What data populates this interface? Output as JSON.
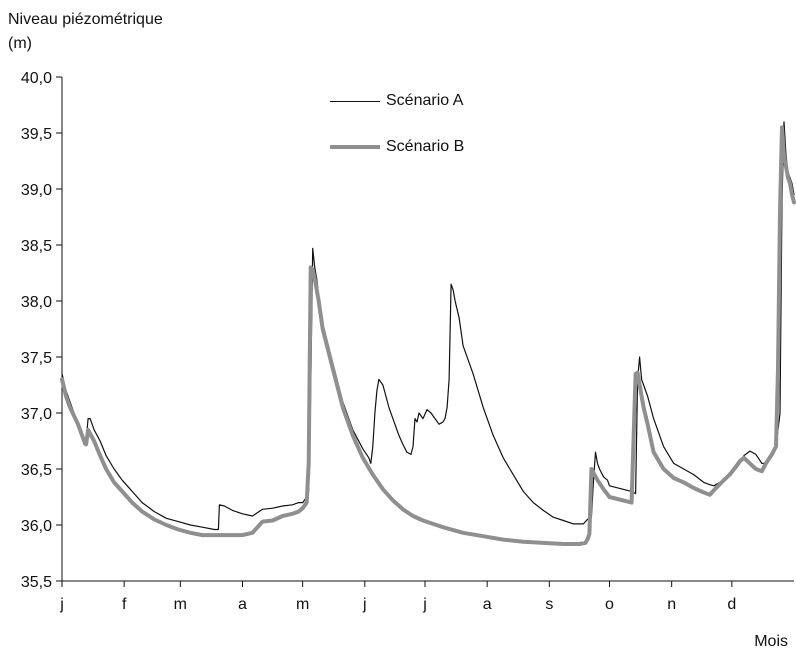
{
  "chart_data": {
    "type": "line",
    "ylabel_line1": "Niveau piézométrique",
    "ylabel_line2": "(m)",
    "xlabel": "Mois",
    "ylim": [
      35.5,
      40.0
    ],
    "y_ticks": [
      "35,5",
      "36,0",
      "36,5",
      "37,0",
      "37,5",
      "38,0",
      "38,5",
      "39,0",
      "39,5",
      "40,0"
    ],
    "x_range": [
      0,
      365
    ],
    "categories": [
      "j",
      "f",
      "m",
      "a",
      "m",
      "j",
      "j",
      "a",
      "s",
      "o",
      "n",
      "d"
    ],
    "category_positions": [
      0,
      31,
      59,
      90,
      120,
      151,
      181,
      212,
      243,
      273,
      304,
      334
    ],
    "legend_placement": "top-center",
    "grid": false,
    "series": [
      {
        "name": "Scénario A",
        "color": "#111111",
        "style": "thin",
        "x": [
          0,
          2,
          4,
          8,
          11,
          12,
          13,
          14,
          16,
          19,
          22,
          26,
          30,
          35,
          40,
          46,
          52,
          58,
          64,
          70,
          76,
          78,
          78.5,
          81,
          85,
          90,
          95,
          100,
          105,
          110,
          115,
          118,
          120,
          122,
          123,
          124,
          125,
          126,
          127,
          128,
          130,
          135,
          140,
          145,
          150,
          153,
          154,
          155,
          156,
          157,
          158,
          160,
          163,
          166,
          168,
          170,
          172,
          174,
          175,
          176,
          177,
          178,
          180,
          182,
          184,
          186,
          188,
          190,
          191,
          192,
          193,
          194,
          195,
          196,
          198,
          200,
          205,
          210,
          215,
          220,
          225,
          230,
          235,
          240,
          245,
          250,
          255,
          260,
          262,
          264,
          265,
          266,
          267,
          268,
          270,
          272,
          273,
          284,
          286,
          287,
          288,
          289,
          290,
          292,
          295,
          300,
          305,
          310,
          315,
          320,
          323,
          325,
          330,
          333,
          336,
          338,
          340,
          343,
          346,
          349,
          351,
          354,
          356,
          358,
          359,
          360,
          361,
          362,
          363,
          364,
          365
        ],
        "y": [
          37.35,
          37.2,
          37.1,
          36.9,
          36.72,
          36.75,
          36.95,
          36.95,
          36.85,
          36.75,
          36.62,
          36.5,
          36.4,
          36.3,
          36.2,
          36.12,
          36.06,
          36.03,
          36.0,
          35.98,
          35.96,
          35.96,
          36.18,
          36.17,
          36.13,
          36.1,
          36.08,
          36.14,
          36.15,
          36.17,
          36.18,
          36.2,
          36.2,
          36.25,
          36.3,
          37.2,
          38.47,
          38.3,
          38.2,
          38.05,
          37.8,
          37.45,
          37.1,
          36.85,
          36.68,
          36.6,
          36.55,
          36.7,
          37.0,
          37.2,
          37.3,
          37.25,
          37.05,
          36.9,
          36.8,
          36.72,
          36.65,
          36.63,
          36.7,
          36.95,
          36.92,
          37.0,
          36.95,
          37.03,
          37.0,
          36.95,
          36.9,
          36.92,
          36.95,
          37.05,
          37.3,
          38.15,
          38.1,
          38.0,
          37.85,
          37.6,
          37.35,
          37.05,
          36.8,
          36.6,
          36.45,
          36.3,
          36.2,
          36.13,
          36.07,
          36.04,
          36.01,
          36.01,
          36.05,
          36.07,
          36.4,
          36.65,
          36.55,
          36.5,
          36.43,
          36.4,
          36.35,
          36.3,
          36.28,
          37.3,
          37.5,
          37.3,
          37.25,
          37.15,
          36.95,
          36.7,
          36.55,
          36.5,
          36.45,
          36.38,
          36.36,
          36.35,
          36.4,
          36.47,
          36.5,
          36.55,
          36.62,
          36.66,
          36.63,
          36.55,
          36.55,
          36.62,
          36.7,
          37.0,
          38.9,
          39.6,
          39.3,
          39.15,
          39.1,
          39.05,
          38.95
        ]
      },
      {
        "name": "Scénario B",
        "color": "#8f8f8f",
        "style": "thick",
        "x": [
          0,
          2,
          4,
          8,
          11,
          12,
          13,
          16,
          19,
          22,
          26,
          30,
          35,
          40,
          46,
          52,
          58,
          64,
          70,
          76,
          80,
          85,
          90,
          95,
          98,
          100,
          105,
          110,
          115,
          118,
          120,
          122,
          123,
          124,
          125,
          126,
          128,
          130,
          135,
          140,
          145,
          150,
          155,
          160,
          165,
          170,
          175,
          180,
          185,
          190,
          200,
          210,
          220,
          230,
          240,
          250,
          258,
          261,
          262,
          263,
          264,
          267,
          270,
          273,
          284,
          286,
          287,
          288,
          289,
          290,
          292,
          295,
          300,
          305,
          310,
          315,
          320,
          323,
          325,
          330,
          333,
          336,
          338,
          340,
          343,
          346,
          349,
          351,
          354,
          356,
          357,
          358,
          359,
          360,
          361,
          362,
          363,
          364,
          365
        ],
        "y": [
          37.3,
          37.15,
          37.05,
          36.9,
          36.75,
          36.72,
          36.85,
          36.75,
          36.62,
          36.5,
          36.38,
          36.3,
          36.2,
          36.12,
          36.05,
          36.0,
          35.96,
          35.93,
          35.91,
          35.91,
          35.91,
          35.91,
          35.91,
          35.93,
          35.99,
          36.03,
          36.04,
          36.08,
          36.1,
          36.12,
          36.15,
          36.2,
          36.55,
          38.3,
          38.28,
          38.2,
          38.0,
          37.75,
          37.4,
          37.05,
          36.8,
          36.6,
          36.45,
          36.32,
          36.22,
          36.14,
          36.08,
          36.04,
          36.01,
          35.98,
          35.93,
          35.9,
          35.87,
          35.85,
          35.84,
          35.83,
          35.83,
          35.84,
          35.87,
          35.92,
          36.5,
          36.4,
          36.32,
          36.25,
          36.2,
          37.35,
          37.36,
          37.25,
          37.15,
          37.05,
          36.9,
          36.65,
          36.5,
          36.42,
          36.38,
          36.33,
          36.29,
          36.27,
          36.31,
          36.4,
          36.45,
          36.52,
          36.57,
          36.6,
          36.55,
          36.5,
          36.48,
          36.55,
          36.63,
          36.7,
          37.4,
          38.8,
          39.55,
          39.3,
          39.2,
          39.1,
          39.05,
          38.95,
          38.88
        ]
      }
    ]
  }
}
